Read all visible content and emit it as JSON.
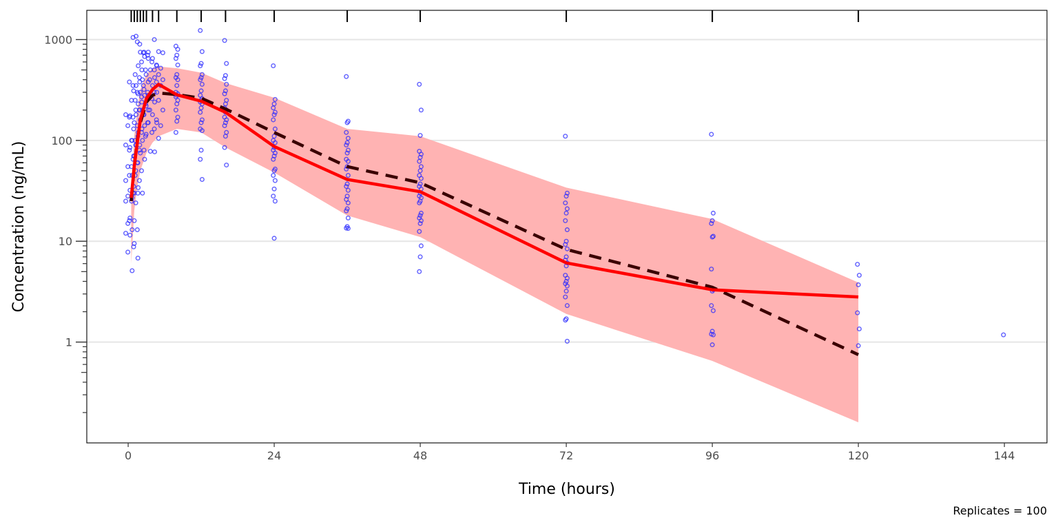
{
  "chart_data": {
    "type": "scatter",
    "title": "",
    "xlabel": "Time (hours)",
    "ylabel": "Concentration (ng/mL)",
    "caption": "Replicates = 100",
    "x_scale": "linear",
    "y_scale": "log10",
    "xlim": [
      -6.8,
      151
    ],
    "ylim": [
      0.1,
      1950
    ],
    "x_ticks": [
      0,
      24,
      48,
      72,
      96,
      120,
      144
    ],
    "x_tick_labels": [
      "0",
      "24",
      "48",
      "72",
      "96",
      "120",
      "144"
    ],
    "y_ticks": [
      1,
      10,
      100,
      1000
    ],
    "y_tick_labels": [
      "1",
      "10",
      "100",
      "1000"
    ],
    "grid": "horizontal major",
    "colors": {
      "observed_points": "#2b2bff",
      "observed_median": "#ff0000",
      "simulated_median": "#3a0000",
      "prediction_interval": "#ffb3b3",
      "grid": "#e5e5e5"
    },
    "bin_times": [
      0.5,
      1,
      1.5,
      2,
      2.5,
      3,
      4,
      5,
      8,
      12,
      16,
      24,
      36,
      48,
      72,
      96,
      120
    ],
    "observed_median": {
      "name": "Observed median",
      "x": [
        0.5,
        1,
        1.5,
        2,
        3,
        4,
        5,
        8,
        12,
        16,
        24,
        36,
        48,
        72,
        96,
        120
      ],
      "y": [
        27,
        55,
        95,
        160,
        260,
        320,
        360,
        283,
        245,
        190,
        87,
        41,
        31,
        6.1,
        3.3,
        2.8
      ]
    },
    "simulated_median": {
      "name": "Simulated median",
      "x": [
        0.5,
        1,
        1.5,
        2,
        3,
        4,
        5,
        8,
        12,
        16,
        24,
        36,
        48,
        72,
        96,
        120
      ],
      "y": [
        25,
        55,
        100,
        150,
        240,
        280,
        295,
        285,
        262,
        205,
        120,
        55,
        38,
        8.3,
        3.5,
        0.75
      ]
    },
    "prediction_interval": {
      "name": "Simulated 90% interval",
      "x": [
        0.5,
        1,
        1.5,
        2,
        3,
        4,
        5,
        8,
        12,
        16,
        24,
        36,
        48,
        72,
        96,
        120
      ],
      "lower": [
        6,
        20,
        35,
        50,
        75,
        95,
        110,
        130,
        120,
        85,
        48,
        18,
        11,
        1.9,
        0.65,
        0.16
      ],
      "upper": [
        35,
        110,
        200,
        320,
        450,
        520,
        540,
        520,
        470,
        370,
        265,
        130,
        110,
        34,
        16.6,
        3.9
      ]
    },
    "observed": [
      {
        "t": 0.3,
        "values": [
          180,
          175,
          150,
          140,
          100,
          90,
          85,
          70,
          55,
          45,
          40,
          32,
          30,
          28,
          27,
          25,
          17,
          16,
          15,
          13,
          12,
          11.5,
          9.5,
          7.8,
          5.1
        ]
      },
      {
        "t": 0.9,
        "values": [
          380,
          310,
          290,
          250,
          200,
          170,
          130,
          110,
          100,
          90,
          80,
          70,
          60,
          55,
          50,
          45,
          35,
          30,
          25,
          24,
          16,
          8.8,
          6.8
        ]
      },
      {
        "t": 1.5,
        "values": [
          1050,
          950,
          600,
          450,
          420,
          350,
          300,
          270,
          250,
          200,
          170,
          140,
          120,
          100,
          80,
          65,
          60,
          50,
          45,
          40,
          30,
          13
        ]
      },
      {
        "t": 2,
        "values": [
          1080,
          750,
          680,
          550,
          400,
          350,
          300,
          280,
          230,
          200,
          180,
          160,
          140,
          120,
          100,
          90,
          75,
          65,
          34,
          30
        ]
      },
      {
        "t": 2.6,
        "values": [
          900,
          750,
          650,
          500,
          450,
          380,
          320,
          280,
          240,
          220,
          200,
          180,
          150,
          130,
          115,
          90,
          80
        ]
      },
      {
        "t": 3.2,
        "values": [
          740,
          700,
          600,
          500,
          400,
          350,
          300,
          260,
          230,
          200,
          180,
          150,
          120,
          110
        ]
      },
      {
        "t": 4,
        "values": [
          750,
          650,
          550,
          500,
          420,
          380,
          350,
          300,
          270,
          240,
          200,
          180,
          150,
          78,
          77
        ]
      },
      {
        "t": 5,
        "values": [
          1000,
          760,
          740,
          560,
          520,
          500,
          450,
          400,
          380,
          350,
          300,
          250,
          200,
          160,
          140,
          130,
          105
        ]
      },
      {
        "t": 8,
        "values": [
          860,
          800,
          700,
          650,
          560,
          450,
          420,
          400,
          350,
          300,
          290,
          280,
          270,
          250,
          230,
          200,
          170,
          155,
          120
        ]
      },
      {
        "t": 12,
        "values": [
          1230,
          760,
          580,
          550,
          450,
          420,
          400,
          360,
          310,
          280,
          260,
          250,
          240,
          230,
          210,
          190,
          160,
          150,
          130,
          125,
          80,
          65,
          41
        ]
      },
      {
        "t": 16,
        "values": [
          980,
          580,
          440,
          410,
          360,
          310,
          290,
          250,
          230,
          210,
          200,
          190,
          170,
          160,
          150,
          140,
          120,
          110,
          85,
          57
        ]
      },
      {
        "t": 24,
        "values": [
          550,
          255,
          230,
          210,
          190,
          180,
          160,
          130,
          110,
          100,
          95,
          85,
          80,
          75,
          70,
          65,
          52,
          50,
          45,
          40,
          33,
          28,
          25,
          10.7
        ]
      },
      {
        "t": 36,
        "values": [
          430,
          155,
          150,
          120,
          105,
          95,
          90,
          80,
          75,
          65,
          62,
          55,
          52,
          45,
          37,
          35,
          32,
          28,
          26,
          24,
          21,
          20,
          17,
          14,
          13.5,
          13.4
        ]
      },
      {
        "t": 48,
        "values": [
          360,
          200,
          112,
          78,
          73,
          68,
          62,
          55,
          50,
          45,
          42,
          37,
          35,
          33,
          30,
          28,
          27,
          25,
          24,
          19,
          18,
          17,
          16,
          15,
          12.5,
          9,
          7,
          5
        ]
      },
      {
        "t": 72,
        "values": [
          110,
          30,
          28,
          24,
          21,
          19,
          16,
          13,
          10,
          9.3,
          8.4,
          7,
          6.5,
          6.1,
          5.7,
          4.6,
          4.3,
          4,
          3.8,
          3.6,
          3.2,
          2.8,
          2.3,
          1.7,
          1.65,
          1.02
        ]
      },
      {
        "t": 96,
        "values": [
          115,
          19,
          16,
          15,
          11.2,
          11,
          5.3,
          3.3,
          3.2,
          2.3,
          2.05,
          1.28,
          1.2,
          1.18,
          0.94
        ]
      },
      {
        "t": 120,
        "values": [
          5.9,
          4.6,
          3.7,
          1.95,
          1.35,
          0.92
        ]
      },
      {
        "t": 144,
        "values": [
          1.18
        ]
      }
    ]
  }
}
